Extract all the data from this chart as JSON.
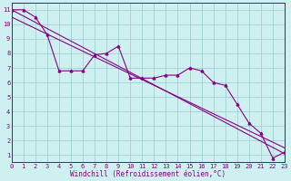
{
  "xlabel": "Windchill (Refroidissement éolien,°C)",
  "ylabel": "",
  "bg_color": "#cff0f0",
  "line_color": "#880088",
  "grid_color": "#99cccc",
  "data_x": [
    0,
    1,
    2,
    3,
    4,
    5,
    6,
    7,
    8,
    9,
    10,
    11,
    12,
    13,
    14,
    15,
    16,
    17,
    18,
    19,
    20,
    21,
    22,
    23
  ],
  "data_y": [
    11,
    11,
    10.5,
    9.3,
    6.8,
    6.8,
    6.8,
    7.9,
    8.0,
    8.5,
    6.3,
    6.3,
    6.3,
    6.5,
    6.5,
    7.0,
    6.8,
    6.0,
    5.8,
    4.5,
    3.2,
    2.5,
    0.8,
    1.2
  ],
  "trend1_x": [
    0,
    23
  ],
  "trend1_y": [
    11,
    1.1
  ],
  "trend2_x": [
    0,
    23
  ],
  "trend2_y": [
    10.5,
    1.5
  ],
  "xlim": [
    0,
    23
  ],
  "ylim": [
    0.5,
    11.5
  ],
  "xticks": [
    0,
    1,
    2,
    3,
    4,
    5,
    6,
    7,
    8,
    9,
    10,
    11,
    12,
    13,
    14,
    15,
    16,
    17,
    18,
    19,
    20,
    21,
    22,
    23
  ],
  "yticks": [
    1,
    2,
    3,
    4,
    5,
    6,
    7,
    8,
    9,
    10,
    11
  ],
  "marker": "^",
  "marker_size": 2.0,
  "line_width": 0.8,
  "font_size": 5.0,
  "xlabel_font_size": 5.5
}
